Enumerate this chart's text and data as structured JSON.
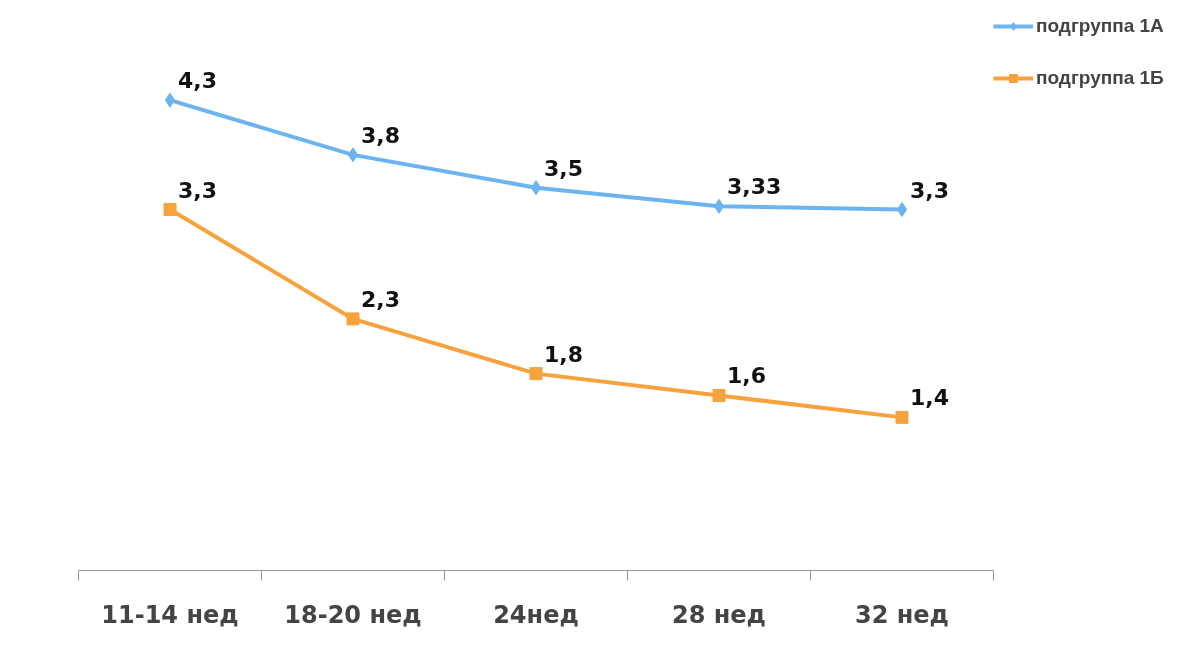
{
  "chart_data": {
    "type": "line",
    "categories": [
      "11-14 нед",
      "18-20 нед",
      "24нед",
      "28 нед",
      "32 нед"
    ],
    "series": [
      {
        "name": "подгруппа 1А",
        "color": "#6cb4f0",
        "marker": "diamond",
        "values": [
          4.3,
          3.8,
          3.5,
          3.33,
          3.3
        ],
        "value_labels": [
          "4,3",
          "3,8",
          "3,5",
          "3,33",
          "3,3"
        ]
      },
      {
        "name": "подгруппа 1Б",
        "color": "#f7a23d",
        "marker": "square",
        "values": [
          3.3,
          2.3,
          1.8,
          1.6,
          1.4
        ],
        "value_labels": [
          "3,3",
          "2,3",
          "1,8",
          "1,6",
          "1,4"
        ]
      }
    ],
    "tick_labels": "x",
    "grid": false,
    "legend": "top right",
    "line_style": "solid"
  }
}
